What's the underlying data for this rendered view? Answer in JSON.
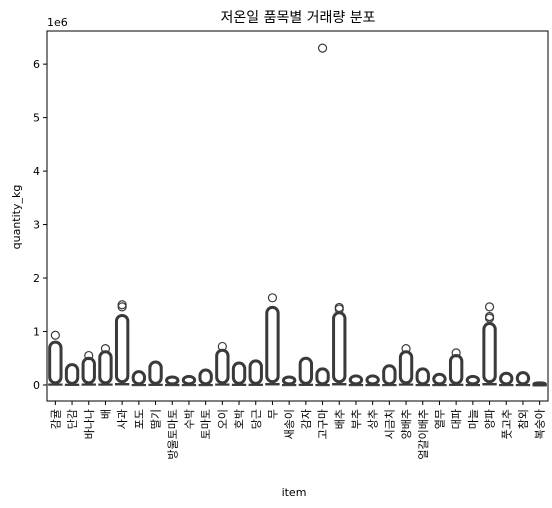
{
  "chart_data": {
    "type": "boxplot",
    "title": "저온일 품목별 거래량 분포",
    "xlabel": "item",
    "ylabel": "quantity_kg",
    "y_scale_label": "1e6",
    "ylim": [
      -0.3,
      6.62
    ],
    "y_ticks": [
      0,
      1,
      2,
      3,
      4,
      5,
      6
    ],
    "y_tick_labels": [
      "0",
      "1",
      "2",
      "3",
      "4",
      "5",
      "6"
    ],
    "grid": false,
    "box_color": "#3a3a3a",
    "categories": [
      "감귤",
      "단감",
      "바나나",
      "배",
      "사과",
      "포도",
      "딸기",
      "방울토마토",
      "수박",
      "토마토",
      "오이",
      "호박",
      "당근",
      "무",
      "새송이",
      "감자",
      "고구마",
      "배추",
      "부추",
      "상추",
      "시금치",
      "양배추",
      "얼갈이배추",
      "열무",
      "대파",
      "마늘",
      "양파",
      "풋고추",
      "참외",
      "복숭아"
    ],
    "series": [
      {
        "whisker_high": 0.04,
        "outlier_max": 0.8,
        "outlier_extra": [
          0.93
        ]
      },
      {
        "whisker_high": 0.03,
        "outlier_max": 0.38,
        "outlier_extra": []
      },
      {
        "whisker_high": 0.04,
        "outlier_max": 0.5,
        "outlier_extra": [
          0.55
        ]
      },
      {
        "whisker_high": 0.04,
        "outlier_max": 0.62,
        "outlier_extra": [
          0.68
        ]
      },
      {
        "whisker_high": 0.06,
        "outlier_max": 1.3,
        "outlier_extra": [
          1.46,
          1.5
        ]
      },
      {
        "whisker_high": 0.02,
        "outlier_max": 0.25,
        "outlier_extra": []
      },
      {
        "whisker_high": 0.03,
        "outlier_max": 0.43,
        "outlier_extra": []
      },
      {
        "whisker_high": 0.02,
        "outlier_max": 0.15,
        "outlier_extra": []
      },
      {
        "whisker_high": 0.02,
        "outlier_max": 0.16,
        "outlier_extra": []
      },
      {
        "whisker_high": 0.02,
        "outlier_max": 0.28,
        "outlier_extra": []
      },
      {
        "whisker_high": 0.04,
        "outlier_max": 0.65,
        "outlier_extra": [
          0.72
        ]
      },
      {
        "whisker_high": 0.03,
        "outlier_max": 0.41,
        "outlier_extra": []
      },
      {
        "whisker_high": 0.03,
        "outlier_max": 0.45,
        "outlier_extra": []
      },
      {
        "whisker_high": 0.06,
        "outlier_max": 1.45,
        "outlier_extra": [
          1.63
        ]
      },
      {
        "whisker_high": 0.02,
        "outlier_max": 0.15,
        "outlier_extra": []
      },
      {
        "whisker_high": 0.03,
        "outlier_max": 0.5,
        "outlier_extra": []
      },
      {
        "whisker_high": 0.02,
        "outlier_max": 0.3,
        "outlier_extra": [
          6.3
        ]
      },
      {
        "whisker_high": 0.06,
        "outlier_max": 1.35,
        "outlier_extra": [
          1.42,
          1.45
        ]
      },
      {
        "whisker_high": 0.02,
        "outlier_max": 0.17,
        "outlier_extra": []
      },
      {
        "whisker_high": 0.02,
        "outlier_max": 0.17,
        "outlier_extra": []
      },
      {
        "whisker_high": 0.02,
        "outlier_max": 0.36,
        "outlier_extra": []
      },
      {
        "whisker_high": 0.04,
        "outlier_max": 0.62,
        "outlier_extra": [
          0.68
        ]
      },
      {
        "whisker_high": 0.02,
        "outlier_max": 0.3,
        "outlier_extra": []
      },
      {
        "whisker_high": 0.02,
        "outlier_max": 0.2,
        "outlier_extra": []
      },
      {
        "whisker_high": 0.03,
        "outlier_max": 0.55,
        "outlier_extra": [
          0.6
        ]
      },
      {
        "whisker_high": 0.02,
        "outlier_max": 0.16,
        "outlier_extra": []
      },
      {
        "whisker_high": 0.06,
        "outlier_max": 1.15,
        "outlier_extra": [
          1.25,
          1.28,
          1.46
        ]
      },
      {
        "whisker_high": 0.02,
        "outlier_max": 0.22,
        "outlier_extra": []
      },
      {
        "whisker_high": 0.02,
        "outlier_max": 0.23,
        "outlier_extra": []
      },
      {
        "whisker_high": 0.01,
        "outlier_max": 0.04,
        "outlier_extra": []
      }
    ]
  }
}
